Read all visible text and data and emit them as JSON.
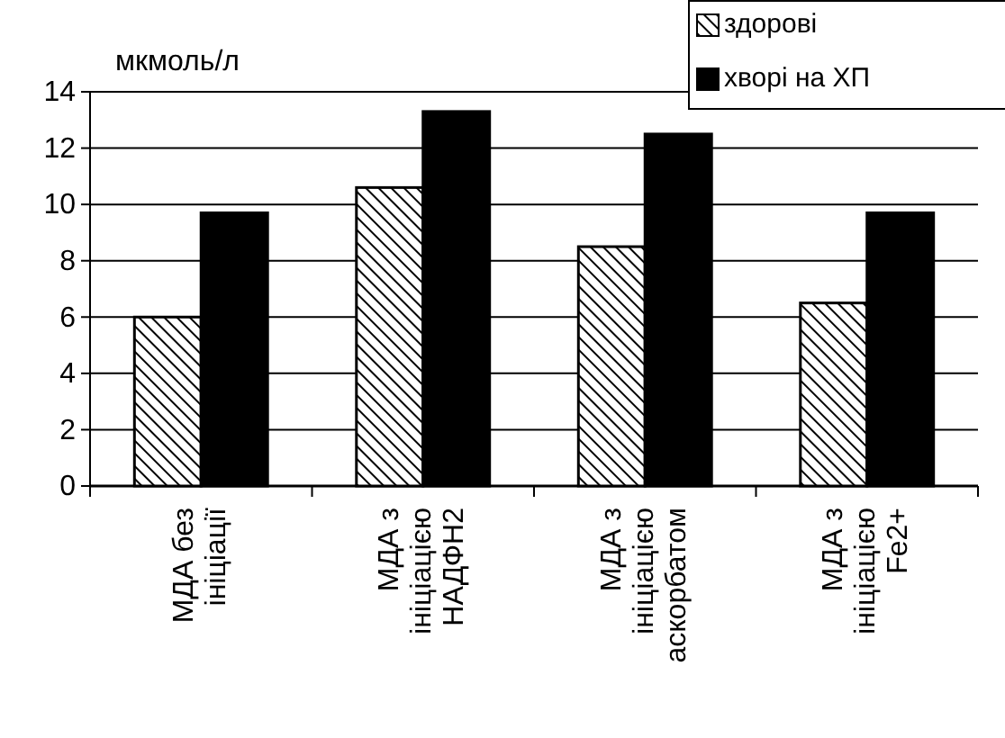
{
  "chart_data": {
    "type": "bar",
    "ylabel": "мкмоль/л",
    "categories": [
      "МДА без ініціації",
      "МДА з ініціацією НАДФН2",
      "МДА з ініціацією аскорбатом",
      "МДА з ініціацією Fe2+"
    ],
    "series": [
      {
        "name": "здорові",
        "color": "#000000",
        "values": [
          6.0,
          10.6,
          8.5,
          6.5
        ]
      },
      {
        "name": "хворі на ХП",
        "color": "#000000",
        "values": [
          9.7,
          13.3,
          12.5,
          9.7
        ]
      }
    ],
    "ylim": [
      0,
      14
    ],
    "yticks": [
      0,
      2,
      4,
      6,
      8,
      10,
      12,
      14
    ],
    "grid": "y",
    "legend": "top right"
  }
}
